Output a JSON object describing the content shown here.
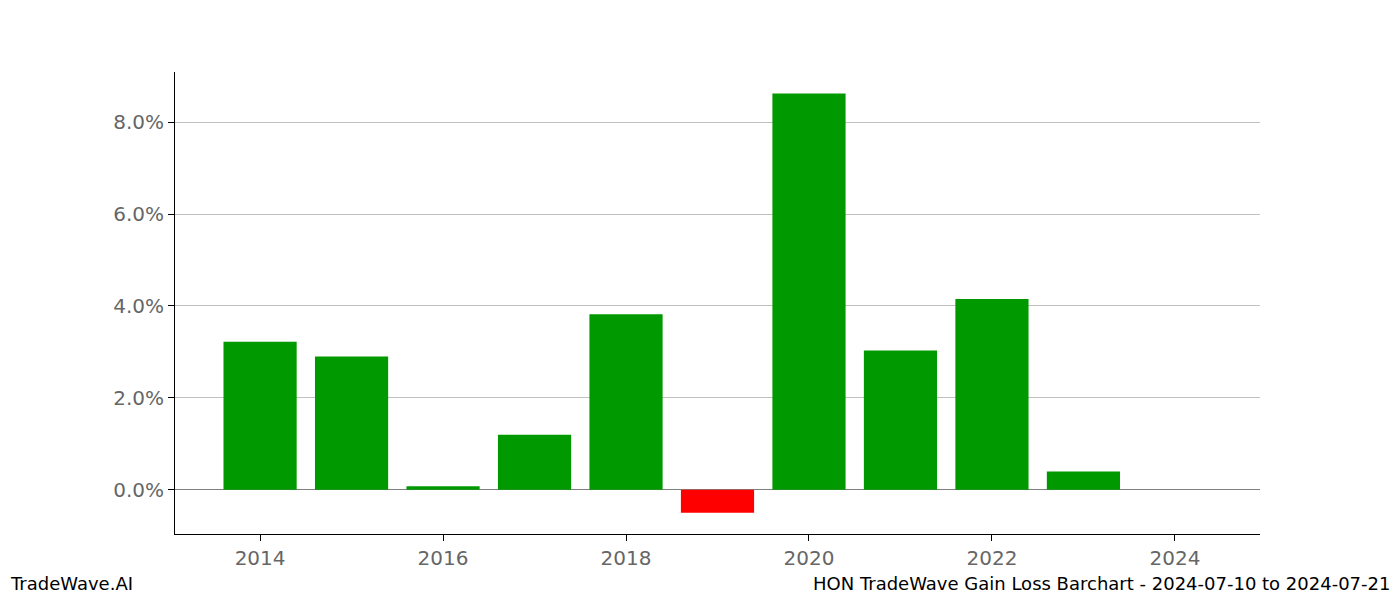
{
  "chart_data": {
    "type": "bar",
    "title": "HON TradeWave Gain Loss Barchart - 2024-07-10 to 2024-07-21",
    "annotations": [
      {
        "text": "TradeWave.AI"
      }
    ],
    "x": [
      2014,
      2015,
      2016,
      2017,
      2018,
      2019,
      2020,
      2021,
      2022,
      2023
    ],
    "values": [
      3.22,
      2.9,
      0.08,
      1.2,
      3.82,
      -0.5,
      8.62,
      3.03,
      4.15,
      0.4
    ],
    "colors": [
      "#009900",
      "#009900",
      "#009900",
      "#009900",
      "#009900",
      "#ff0000",
      "#009900",
      "#009900",
      "#009900",
      "#009900"
    ],
    "xlim": [
      2013.07,
      2024.93
    ],
    "xticks": [
      2014,
      2016,
      2018,
      2020,
      2022,
      2024
    ],
    "ylim": [
      -0.96,
      9.09
    ],
    "yticks": [
      {
        "value": 0,
        "label": "0.0%"
      },
      {
        "value": 2,
        "label": "2.0%"
      },
      {
        "value": 4,
        "label": "4.0%"
      },
      {
        "value": 6,
        "label": "6.0%"
      },
      {
        "value": 8,
        "label": "8.0%"
      }
    ],
    "grid": true
  }
}
